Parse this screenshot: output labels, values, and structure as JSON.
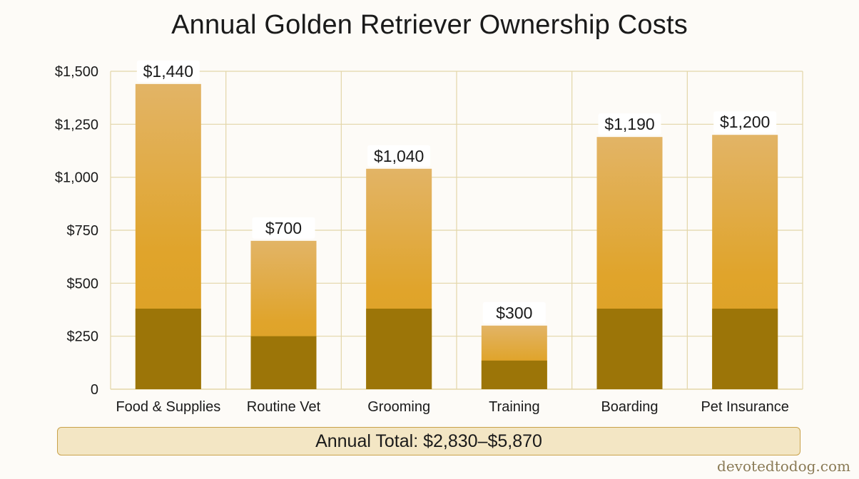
{
  "chart_data": {
    "type": "bar",
    "title": "Annual Golden Retriever Ownership Costs",
    "categories": [
      "Food & Supplies",
      "Routine Vet",
      "Grooming",
      "Training",
      "Boarding",
      "Pet Insurance"
    ],
    "values": [
      1440,
      700,
      1040,
      300,
      1190,
      1200
    ],
    "lower_segment_values": [
      380,
      250,
      380,
      135,
      380,
      380
    ],
    "value_labels": [
      "$1,440",
      "$700",
      "$1,040",
      "$300",
      "$1,190",
      "$1,200"
    ],
    "y_ticks": [
      0,
      250,
      500,
      750,
      1000,
      1250,
      1500
    ],
    "y_tick_labels": [
      "0",
      "$250",
      "$500",
      "$750",
      "$1,000",
      "$1,250",
      "$1,500"
    ],
    "ylim": [
      0,
      1500
    ],
    "xlabel": "",
    "ylabel": "",
    "grid": true,
    "colors": {
      "bar_top": "#e0b060",
      "bar_mid": "#dfa42a",
      "bar_lower": "#9c7508",
      "grid": "#e3d6a8",
      "label_bg": "#ffffff"
    }
  },
  "summary": {
    "total_text": "Annual Total: $2,830–$5,870"
  },
  "watermark": "devotedtodog.com"
}
